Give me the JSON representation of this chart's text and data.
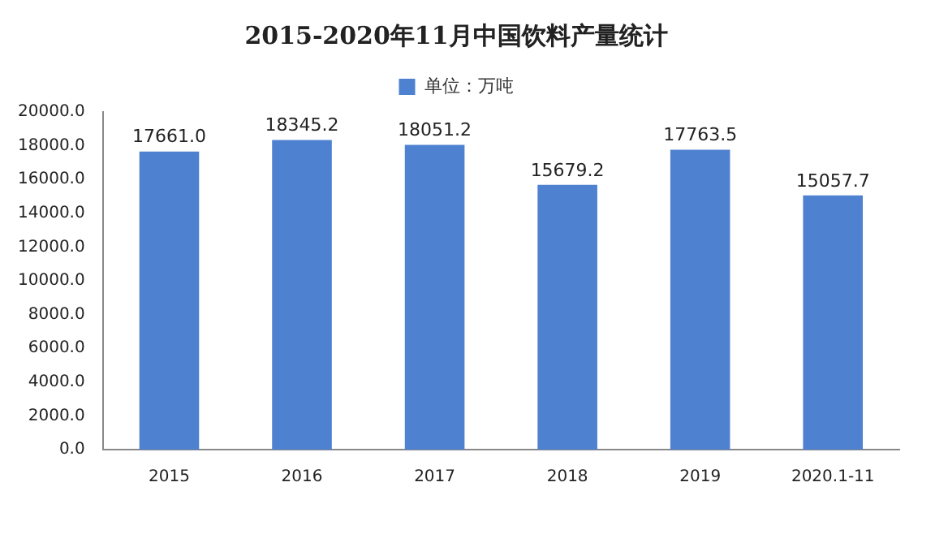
{
  "chart_data": {
    "type": "bar",
    "title": "2015-2020年11月中国饮料产量统计",
    "categories": [
      "2015",
      "2016",
      "2017",
      "2018",
      "2019",
      "2020.1-11"
    ],
    "series": [
      {
        "name": "单位：万吨",
        "color": "#4e81d0",
        "values": [
          17661.0,
          18345.2,
          18051.2,
          15679.2,
          17763.5,
          15057.7
        ],
        "value_labels": [
          "17661.0",
          "18345.2",
          "18051.2",
          "15679.2",
          "17763.5",
          "15057.7"
        ]
      }
    ],
    "ylim": [
      0,
      20000
    ],
    "yticks": [
      {
        "value": 0,
        "label": "0.0"
      },
      {
        "value": 2000,
        "label": "2000.0"
      },
      {
        "value": 4000,
        "label": "4000.0"
      },
      {
        "value": 6000,
        "label": "6000.0"
      },
      {
        "value": 8000,
        "label": "8000.0"
      },
      {
        "value": 10000,
        "label": "10000.0"
      },
      {
        "value": 12000,
        "label": "12000.0"
      },
      {
        "value": 14000,
        "label": "14000.0"
      },
      {
        "value": 16000,
        "label": "16000.0"
      },
      {
        "value": 18000,
        "label": "18000.0"
      },
      {
        "value": 20000,
        "label": "20000.0"
      }
    ],
    "grid": false,
    "legend": "top"
  }
}
